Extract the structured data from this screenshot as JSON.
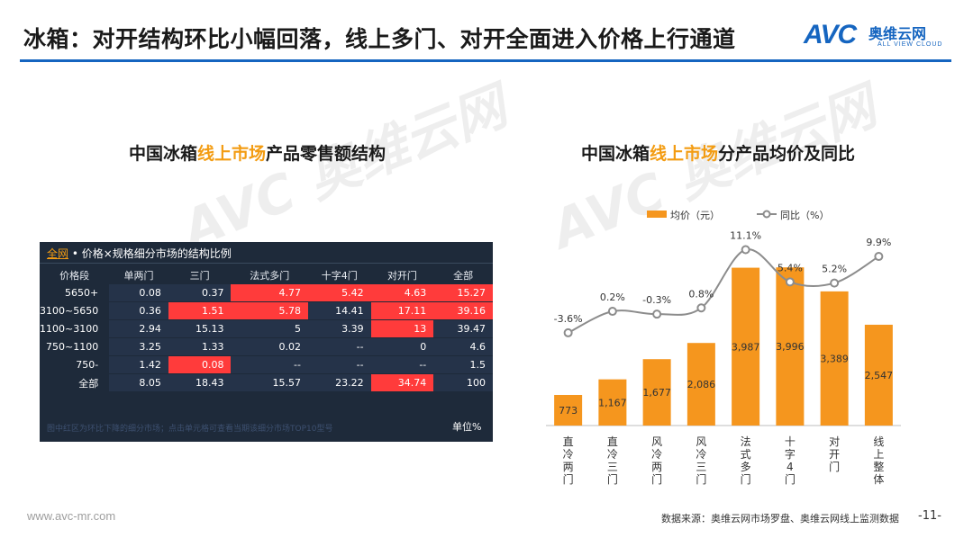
{
  "slide": {
    "title": "冰箱：对开结构环比小幅回落，线上多门、对开全面进入价格上行通道",
    "logo_text": "AVC",
    "logo_cn": "奥维云网",
    "logo_en": "ALL VIEW CLOUD",
    "watermark": "AVC 奥维云网",
    "footer_url": "www.avc-mr.com",
    "footer_source": "数据来源：奥维云网市场罗盘、奥维云网线上监测数据",
    "page_number": "-11-",
    "accent_color": "#1565c0",
    "highlight_color": "#f39c12"
  },
  "left_section": {
    "title_pre": "中国冰箱",
    "title_hl": "线上市场",
    "title_post": "产品零售额结构"
  },
  "right_section": {
    "title_pre": "中国冰箱",
    "title_hl": "线上市场",
    "title_post": "分产品均价及同比"
  },
  "chart_data": [
    {
      "type": "table",
      "title": "全网 • 价格×规格细分市场的结构比例",
      "tab_label": "全网",
      "subtitle": " • 价格×规格细分市场的结构比例",
      "columns": [
        "价格段",
        "单两门",
        "三门",
        "法式多门",
        "十字4门",
        "对开门",
        "全部"
      ],
      "rows": [
        {
          "label": "5650+",
          "cells": [
            "0.08",
            "0.37",
            "4.77",
            "5.42",
            "4.63",
            "15.27"
          ],
          "highlight": [
            false,
            false,
            true,
            true,
            true,
            true
          ]
        },
        {
          "label": "3100~5650",
          "cells": [
            "0.36",
            "1.51",
            "5.78",
            "14.41",
            "17.11",
            "39.16"
          ],
          "highlight": [
            false,
            true,
            true,
            false,
            true,
            true
          ]
        },
        {
          "label": "1100~3100",
          "cells": [
            "2.94",
            "15.13",
            "5",
            "3.39",
            "13",
            "39.47"
          ],
          "highlight": [
            false,
            false,
            false,
            false,
            true,
            false
          ]
        },
        {
          "label": "750~1100",
          "cells": [
            "3.25",
            "1.33",
            "0.02",
            "--",
            "0",
            "4.6"
          ],
          "highlight": [
            false,
            false,
            false,
            false,
            false,
            false
          ]
        },
        {
          "label": "750-",
          "cells": [
            "1.42",
            "0.08",
            "--",
            "--",
            "--",
            "1.5"
          ],
          "highlight": [
            false,
            true,
            false,
            false,
            false,
            false
          ]
        },
        {
          "label": "全部",
          "cells": [
            "8.05",
            "18.43",
            "15.57",
            "23.22",
            "34.74",
            "100"
          ],
          "highlight": [
            false,
            false,
            false,
            false,
            true,
            false
          ]
        }
      ],
      "note": "图中红区为环比下降的细分市场；点击单元格可查看当期该细分市场TOP10型号",
      "unit": "单位%",
      "highlight_color": "#ff3b3b"
    },
    {
      "type": "bar",
      "categories": [
        "直冷两门",
        "直冷三门",
        "风冷两门",
        "风冷三门",
        "法式多门",
        "十字4门",
        "对开门",
        "线上整体"
      ],
      "series": [
        {
          "name": "均价（元）",
          "type": "bar",
          "values": [
            773,
            1167,
            1677,
            2086,
            3987,
            3996,
            3389,
            2547
          ],
          "labels": [
            "773",
            "1,167",
            "1,677",
            "2,086",
            "3,987",
            "3,996",
            "3,389",
            "2,547"
          ],
          "color": "#f5961e"
        },
        {
          "name": "同比（%）",
          "type": "line",
          "values": [
            -3.6,
            0.2,
            -0.3,
            0.8,
            11.1,
            5.4,
            5.2,
            9.9
          ],
          "labels": [
            "-3.6%",
            "0.2%",
            "-0.3%",
            "0.8%",
            "11.1%",
            "5.4%",
            "5.2%",
            "9.9%"
          ],
          "color": "#8c8c8c"
        }
      ],
      "bar_ylim": [
        0,
        5000
      ],
      "line_ylim": [
        -20,
        15
      ],
      "grid": false,
      "legend_position": "top"
    }
  ]
}
